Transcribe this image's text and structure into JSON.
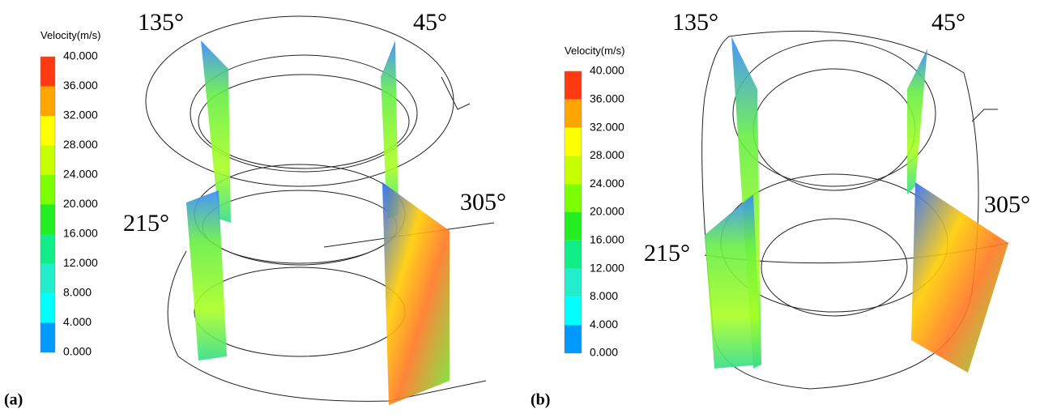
{
  "panels": [
    {
      "label": "(a)",
      "legend": {
        "title": "Velocity(m/s)",
        "ticks": [
          "40.000",
          "36.000",
          "32.000",
          "28.000",
          "24.000",
          "20.000",
          "16.000",
          "12.000",
          "8.000",
          "4.000",
          "0.000"
        ]
      },
      "angles": [
        "135°",
        "45°",
        "215°",
        "305°"
      ]
    },
    {
      "label": "(b)",
      "legend": {
        "title": "Velocity(m/s)",
        "ticks": [
          "40.000",
          "36.000",
          "32.000",
          "28.000",
          "24.000",
          "20.000",
          "16.000",
          "12.000",
          "8.000",
          "4.000",
          "0.000"
        ]
      },
      "angles": [
        "135°",
        "45°",
        "215°",
        "305°"
      ]
    }
  ]
}
